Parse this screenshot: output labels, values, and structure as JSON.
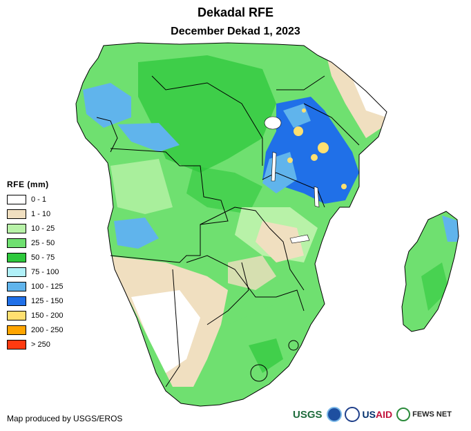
{
  "title": "Dekadal RFE",
  "subtitle": "December Dekad 1, 2023",
  "legend": {
    "title": "RFE (mm)",
    "classes": [
      {
        "label": "0 - 1",
        "color": "#ffffff"
      },
      {
        "label": "1 - 10",
        "color": "#f0dfc0"
      },
      {
        "label": "10 - 25",
        "color": "#b8f2a8"
      },
      {
        "label": "25 - 50",
        "color": "#6fe070"
      },
      {
        "label": "50 - 75",
        "color": "#2ec83c"
      },
      {
        "label": "75 - 100",
        "color": "#b0f0f8"
      },
      {
        "label": "100 - 125",
        "color": "#60b4ec"
      },
      {
        "label": "125 - 150",
        "color": "#2070e8"
      },
      {
        "label": "150 - 200",
        "color": "#ffe070"
      },
      {
        "label": "200 - 250",
        "color": "#ffa500"
      },
      {
        "label": "> 250",
        "color": "#ff3a10"
      }
    ]
  },
  "credit": "Map produced by USGS/EROS",
  "logos": {
    "usgs": "USGS",
    "usaid_u": "US",
    "usaid_a": "AID",
    "fews": "FEWS NET"
  },
  "colors": {
    "boundary": "#000000",
    "water": "#ffffff"
  }
}
